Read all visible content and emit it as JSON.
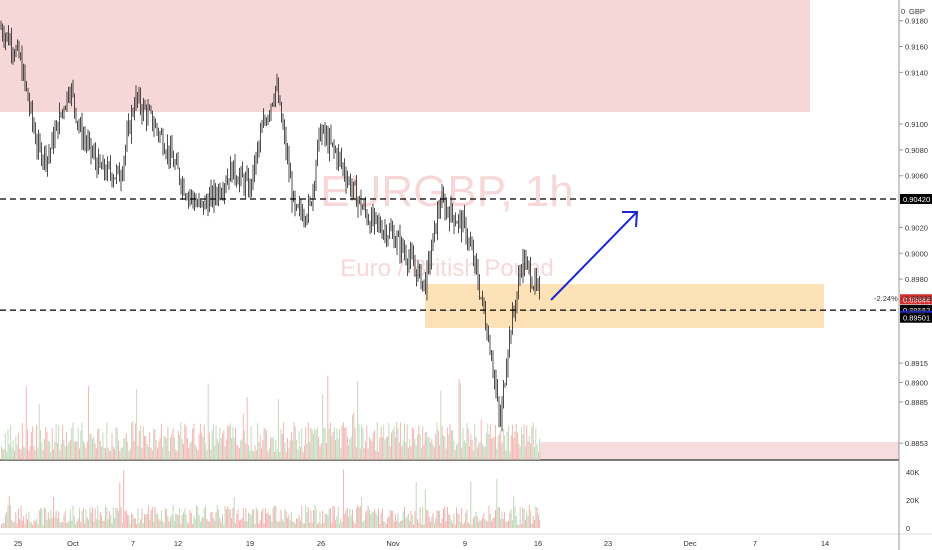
{
  "chart_data": {
    "type": "candlestick",
    "symbol_title": "EURGBP, 1h",
    "symbol_subtitle": "Euro / British Pound",
    "currency_label": "GBP",
    "price_ticks": [
      0.918,
      0.916,
      0.914,
      0.91,
      0.908,
      0.906,
      0.902,
      0.9,
      0.898,
      0.8915,
      0.89,
      0.8885,
      0.8853
    ],
    "price_tick_labels": [
      "0.9180",
      "0.9160",
      "0.9140",
      "0.9100",
      "0.9080",
      "0.9060",
      "0.9020",
      "0.9000",
      "0.8980",
      "0.8915",
      "0.8900",
      "0.8885",
      "0.8853"
    ],
    "top_tick_label": "0",
    "price_range": [
      0.884,
      0.9196
    ],
    "date_labels": [
      "25",
      "Oct",
      "7",
      "12",
      "19",
      "26",
      "Nov",
      "9",
      "16",
      "23",
      "Dec",
      "7",
      "14"
    ],
    "price_badges": [
      {
        "label": "0.90420",
        "price": 0.9042,
        "bg": "#000000",
        "fg": "#ffffff"
      },
      {
        "label": "0.89644",
        "price": 0.89644,
        "bg": "#d32f2f",
        "fg": "#ffffff"
      },
      {
        "label": "0.89562",
        "price": 0.89562,
        "bg": "#000000",
        "fg": "#ffffff"
      },
      {
        "label": "0.89517",
        "price": 0.89517,
        "bg": "#1a28d6",
        "fg": "#ffffff"
      },
      {
        "label": "0.89501",
        "price": 0.89501,
        "bg": "#000000",
        "fg": "#ffffff"
      }
    ],
    "info_label": "-2.24% · 0.89699",
    "countdown_label": "05:06",
    "dashed_levels": [
      0.9042,
      0.8956
    ],
    "zones": [
      {
        "name": "supply",
        "from": 0.912,
        "to": 0.9196,
        "color": "#f4c9c9"
      },
      {
        "name": "demand",
        "from": 0.8952,
        "to": 0.8983,
        "color": "#fde0b4"
      }
    ],
    "volume_ticks_labels": [
      "40K",
      "20K",
      "0"
    ],
    "colors": {
      "up": "#222222",
      "down": "#222222",
      "volume_up": "#b7d4b0",
      "volume_down": "#f2a9a6",
      "arrow": "#1a28d6"
    }
  }
}
